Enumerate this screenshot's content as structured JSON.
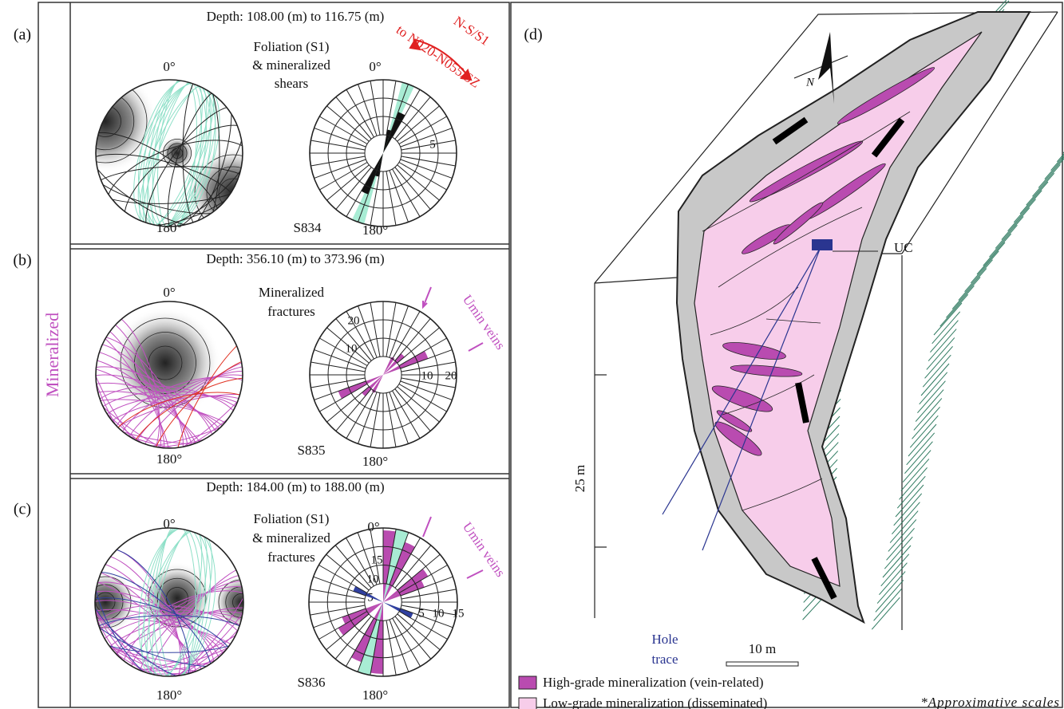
{
  "side_label": "Mineralized",
  "panels": [
    {
      "label": "(a)",
      "depth": "Depth: 108.00 (m) to 116.75 (m)",
      "description": [
        "Foliation (S1)",
        "& mineralized",
        "shears"
      ],
      "stereo_north": "0°",
      "stereo_south": "180°",
      "rose_north": "0°",
      "rose_south": "180°",
      "sample": "S834",
      "rose_ticks": [
        "5",
        "5"
      ],
      "annotation": [
        "N-S/S1",
        "to N020-N055/SZ"
      ]
    },
    {
      "label": "(b)",
      "depth": "Depth: 356.10 (m) to 373.96 (m)",
      "description": [
        "Mineralized",
        "fractures"
      ],
      "stereo_north": "0°",
      "stereo_south": "180°",
      "rose_north": "",
      "rose_south": "180°",
      "sample": "S835",
      "rose_ticks": [
        "20",
        "10",
        "10",
        "20"
      ],
      "annotation": [
        "Umin veins"
      ]
    },
    {
      "label": "(c)",
      "depth": "Depth: 184.00 (m) to 188.00 (m)",
      "description": [
        "Foliation (S1)",
        "& mineralized",
        "fractures"
      ],
      "stereo_north": "0°",
      "stereo_south": "180°",
      "rose_north": "0°",
      "rose_south": "180°",
      "sample": "S836",
      "rose_ticks": [
        "15",
        "10",
        "5",
        "5",
        "10",
        "15"
      ],
      "annotation": [
        "Umin veins"
      ]
    }
  ],
  "block": {
    "label": "(d)",
    "north": "N",
    "uc": "UC",
    "hole_trace": [
      "Hole",
      "trace"
    ],
    "vertical_scale": "25 m",
    "horizontal_scale": "10 m",
    "legend": [
      "High-grade mineralization (vein-related)",
      "Low-grade mineralization (disseminated)"
    ],
    "note": "*Approximative scales"
  }
}
